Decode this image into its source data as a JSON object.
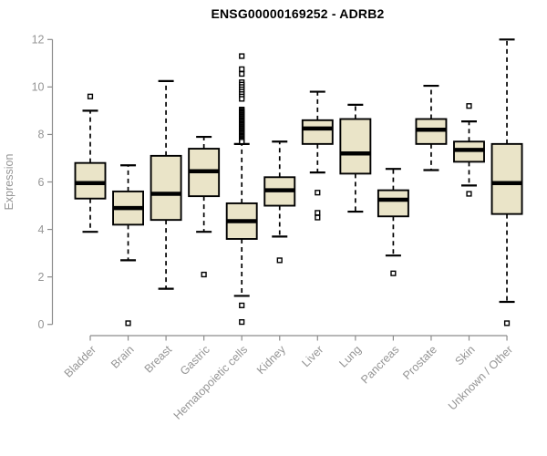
{
  "chart_data": {
    "type": "boxplot",
    "title": "ENSG00000169252 - ADRB2",
    "xlabel": "",
    "ylabel": "Expression",
    "ylim": [
      0,
      12
    ],
    "yticks": [
      0,
      2,
      4,
      6,
      8,
      10,
      12
    ],
    "grid": false,
    "legend": "none",
    "categories": [
      "Bladder",
      "Brain",
      "Breast",
      "Gastric",
      "Hematopoietic cells",
      "Kidney",
      "Liver",
      "Lung",
      "Pancreas",
      "Prostate",
      "Skin",
      "Unknown / Other"
    ],
    "boxes": [
      {
        "category": "Bladder",
        "whisker_low": 3.9,
        "q1": 5.3,
        "median": 5.95,
        "q3": 6.8,
        "whisker_high": 9.0,
        "outliers": [
          9.6
        ]
      },
      {
        "category": "Brain",
        "whisker_low": 2.7,
        "q1": 4.2,
        "median": 4.9,
        "q3": 5.6,
        "whisker_high": 6.7,
        "outliers": [
          0.05
        ]
      },
      {
        "category": "Breast",
        "whisker_low": 1.5,
        "q1": 4.4,
        "median": 5.5,
        "q3": 7.1,
        "whisker_high": 10.25,
        "outliers": []
      },
      {
        "category": "Gastric",
        "whisker_low": 3.9,
        "q1": 5.4,
        "median": 6.45,
        "q3": 7.4,
        "whisker_high": 7.9,
        "outliers": [
          2.1
        ]
      },
      {
        "category": "Hematopoietic cells",
        "whisker_low": 1.2,
        "q1": 3.6,
        "median": 4.35,
        "q3": 5.1,
        "whisker_high": 7.6,
        "outliers": [
          11.3,
          10.75,
          10.55,
          10.2,
          10.1,
          10.0,
          9.9,
          9.8,
          9.7,
          9.6,
          9.5,
          9.05,
          9.0,
          8.95,
          8.9,
          8.85,
          8.8,
          8.75,
          8.7,
          8.65,
          8.6,
          8.55,
          8.5,
          8.45,
          8.4,
          8.35,
          8.3,
          8.25,
          8.2,
          8.15,
          8.1,
          8.05,
          8.0,
          7.95,
          7.9,
          7.85,
          7.8,
          7.75,
          7.7,
          0.8,
          0.1
        ]
      },
      {
        "category": "Kidney",
        "whisker_low": 3.7,
        "q1": 5.0,
        "median": 5.65,
        "q3": 6.2,
        "whisker_high": 7.7,
        "outliers": [
          2.7
        ]
      },
      {
        "category": "Liver",
        "whisker_low": 6.4,
        "q1": 7.6,
        "median": 8.25,
        "q3": 8.6,
        "whisker_high": 9.8,
        "outliers": [
          5.55,
          4.7,
          4.5
        ]
      },
      {
        "category": "Lung",
        "whisker_low": 4.75,
        "q1": 6.35,
        "median": 7.2,
        "q3": 8.65,
        "whisker_high": 9.25,
        "outliers": []
      },
      {
        "category": "Pancreas",
        "whisker_low": 2.9,
        "q1": 4.55,
        "median": 5.25,
        "q3": 5.65,
        "whisker_high": 6.55,
        "outliers": [
          2.15
        ]
      },
      {
        "category": "Prostate",
        "whisker_low": 6.5,
        "q1": 7.6,
        "median": 8.2,
        "q3": 8.65,
        "whisker_high": 10.05,
        "outliers": []
      },
      {
        "category": "Skin",
        "whisker_low": 5.85,
        "q1": 6.85,
        "median": 7.35,
        "q3": 7.7,
        "whisker_high": 8.55,
        "outliers": [
          9.2,
          5.5
        ]
      },
      {
        "category": "Unknown / Other",
        "whisker_low": 0.95,
        "q1": 4.65,
        "median": 5.95,
        "q3": 7.6,
        "whisker_high": 12.0,
        "outliers": [
          0.05
        ]
      }
    ],
    "colors": {
      "box_fill": "#EAE4C8",
      "box_border": "#000000",
      "median": "#000000",
      "whisker": "#000000",
      "outlier_fill": "#ffffff",
      "axis_line": "#8c8c8c",
      "axis_text": "#959595",
      "title_text": "#000000",
      "background": "#ffffff"
    }
  }
}
